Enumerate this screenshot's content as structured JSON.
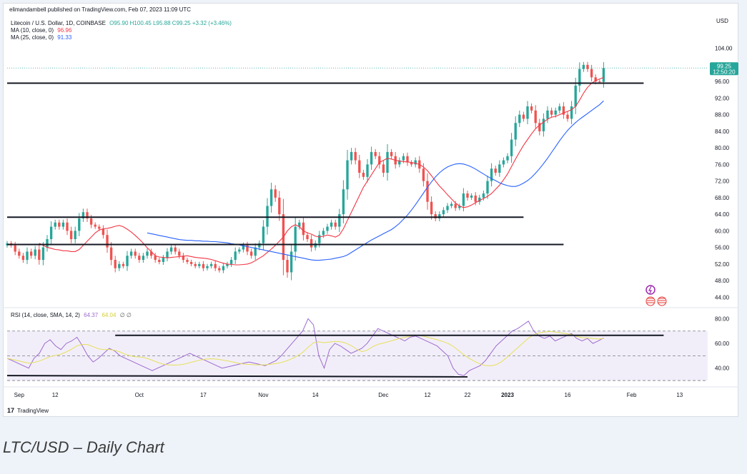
{
  "header": {
    "published": "elimandambell published on TradingView.com, Feb 07, 2023 11:09 UTC",
    "symbol_line": "Litecoin / U.S. Dollar, 1D, COINBASE",
    "ohlc": "O95.90 H100.45 L95.88 C99.25 +3.32 (+3.46%)",
    "ma10_label": "MA (10, close, 0)",
    "ma10_value": "96.96",
    "ma25_label": "MA (25, close, 0)",
    "ma25_value": "91.33",
    "rsi_label": "RSI (14, close, SMA, 14, 2)",
    "rsi_value": "64.37",
    "rsi_sma_value": "64.04",
    "rsi_extra": "∅ ∅",
    "currency": "USD",
    "price_tag": "99.25",
    "countdown": "12:50:20",
    "branding": "TradingView"
  },
  "caption": "LTC/USD – Daily Chart",
  "colors": {
    "up": "#26a69a",
    "down": "#ef5350",
    "ma10": "#f23645",
    "ma25": "#2962ff",
    "rsi": "#9c6bd0",
    "rsi_sma": "#e6e05a",
    "trend": "#131722"
  },
  "chart_data": {
    "type": "candlestick",
    "title": "Litecoin / U.S. Dollar, 1D, COINBASE",
    "price_axis": {
      "ylim": [
        42,
        106
      ],
      "ticks": [
        "104.00",
        "100.00",
        "96.00",
        "92.00",
        "88.00",
        "84.00",
        "80.00",
        "76.00",
        "72.00",
        "68.00",
        "64.00",
        "60.00",
        "56.00",
        "52.00",
        "48.00",
        "44.00"
      ]
    },
    "rsi_axis": {
      "ylim": [
        26,
        86
      ],
      "ticks": [
        "80.00",
        "60.00",
        "40.00"
      ],
      "band": [
        30,
        70
      ]
    },
    "x_ticks": [
      {
        "label": "Sep",
        "day": 3
      },
      {
        "label": "12",
        "day": 12
      },
      {
        "label": "Oct",
        "day": 33
      },
      {
        "label": "17",
        "day": 49
      },
      {
        "label": "Nov",
        "day": 64
      },
      {
        "label": "14",
        "day": 77
      },
      {
        "label": "Dec",
        "day": 94
      },
      {
        "label": "12",
        "day": 105
      },
      {
        "label": "22",
        "day": 115
      },
      {
        "label": "2023",
        "day": 125
      },
      {
        "label": "16",
        "day": 140
      },
      {
        "label": "Feb",
        "day": 156
      },
      {
        "label": "13",
        "day": 168
      }
    ],
    "close": [
      57,
      56.5,
      55,
      54,
      53,
      55,
      54,
      55.5,
      53,
      56,
      58,
      61,
      62,
      61,
      62,
      60,
      58,
      60,
      63,
      64.5,
      63,
      61.5,
      61,
      60.5,
      59,
      56,
      53,
      51,
      52,
      51.5,
      54,
      55,
      54,
      53,
      54,
      55,
      54,
      53,
      52.5,
      53.5,
      55,
      56,
      55,
      54,
      53,
      52.5,
      52,
      51.5,
      52,
      51,
      51.5,
      52,
      51,
      50.5,
      51.5,
      52,
      53,
      55,
      55.5,
      56.5,
      55,
      54,
      56,
      57,
      61,
      66,
      70,
      68,
      64,
      53,
      50,
      55,
      61,
      62,
      59,
      58,
      56,
      57,
      59,
      60,
      61,
      62,
      61,
      64,
      70,
      77,
      79,
      77,
      74,
      73,
      76,
      79,
      78,
      76,
      74,
      79,
      78,
      76,
      77,
      78,
      76.5,
      76,
      77,
      75,
      72,
      67,
      64,
      63,
      64,
      65,
      66,
      66.5,
      65.5,
      66,
      69,
      68,
      68.5,
      67,
      68,
      69,
      72,
      75,
      74,
      76,
      77,
      78,
      82,
      86,
      88,
      87,
      90,
      89,
      86,
      84,
      87,
      89,
      88,
      89,
      90,
      88,
      87,
      90,
      95,
      99,
      100,
      99,
      97,
      96,
      95.9,
      99.25
    ],
    "ma10": [
      57,
      56.5,
      56,
      55.8,
      55.5,
      55.4,
      55.2,
      55.2,
      55,
      55,
      55.5,
      56.5,
      57.5,
      58.5,
      59.5,
      60.2,
      60.5,
      60.6,
      60.8,
      61.1,
      61.3,
      61,
      60.4,
      59.7,
      58.9,
      58,
      57,
      55.9,
      55,
      54,
      53.7,
      53.6,
      53.5,
      53.6,
      53.7,
      53.8,
      53.9,
      54,
      53.8,
      53.6,
      53.5,
      53.4,
      53.3,
      53.1,
      52.8,
      52.5,
      52.2,
      52,
      51.9,
      51.8,
      51.8,
      51.9,
      52,
      52.3,
      52.8,
      53.4,
      54,
      54.8,
      55.6,
      56.5,
      57.5,
      58.5,
      60,
      61,
      61.5,
      61,
      60,
      59.5,
      59.2,
      58.7,
      58.5,
      58.7,
      59,
      58.8,
      58.5,
      59,
      60.5,
      62.5,
      64.5,
      66.5,
      68.5,
      70.5,
      72,
      73.5,
      75,
      76.5,
      77,
      77.5,
      77.3,
      77,
      76.8,
      76.7,
      76.6,
      76.5,
      76.3,
      76,
      75.4,
      74.5,
      73.3,
      72,
      70.8,
      69.8,
      68.7,
      67.7,
      66.7,
      66,
      65.6,
      65.8,
      66.2,
      66.8,
      67.3,
      67.8,
      68.3,
      69,
      70,
      71,
      72.3,
      73.7,
      75.5,
      77.3,
      79,
      80.6,
      82,
      83.4,
      84.6,
      85.5,
      86.2,
      86.9,
      87.4,
      87.6,
      88,
      88.4,
      88.8,
      89.2,
      90,
      91.5,
      93.2,
      94.6,
      95.6,
      96.2,
      96.6,
      96.96
    ],
    "ma25": [
      59.5,
      59.3,
      59.1,
      58.9,
      58.7,
      58.5,
      58.3,
      58.1,
      57.9,
      57.8,
      57.7,
      57.7,
      57.6,
      57.6,
      57.5,
      57.5,
      57.4,
      57.4,
      57.3,
      57.2,
      57.1,
      56.9,
      56.8,
      56.6,
      56.4,
      56.2,
      56,
      55.8,
      55.6,
      55.4,
      55.2,
      55,
      54.8,
      54.6,
      54.4,
      54.2,
      54,
      53.8,
      53.6,
      53.4,
      53.2,
      53,
      52.9,
      52.9,
      53,
      53.1,
      53.2,
      53.4,
      53.6,
      53.8,
      54.2,
      54.8,
      55.4,
      56,
      56.6,
      57.2,
      57.8,
      58.3,
      58.8,
      59.3,
      59.8,
      60.3,
      61,
      61.8,
      62.8,
      63.8,
      65,
      66.3,
      67.7,
      69.1,
      70.5,
      71.8,
      73,
      74,
      74.8,
      75.4,
      75.8,
      76.1,
      76.2,
      76.1,
      75.8,
      75.4,
      74.9,
      74.3,
      73.7,
      73.1,
      72.6,
      72.1,
      71.6,
      71.2,
      70.9,
      70.7,
      70.7,
      71,
      71.5,
      72.1,
      72.9,
      73.9,
      75,
      76.2,
      77.5,
      78.9,
      80.3,
      81.7,
      83,
      84.2,
      85.2,
      86.1,
      86.9,
      87.6,
      88.3,
      89,
      89.7,
      90.4,
      91.33
    ],
    "rsi_sample": [
      48,
      46,
      44,
      42,
      40,
      48,
      52,
      60,
      63,
      58,
      55,
      60,
      62,
      65,
      58,
      50,
      45,
      48,
      52,
      56,
      54,
      50,
      48,
      46,
      44,
      42,
      40,
      38,
      40,
      42,
      44,
      46,
      48,
      50,
      52,
      50,
      48,
      46,
      44,
      42,
      40,
      41,
      42,
      43,
      44,
      45,
      44,
      43,
      42,
      44,
      46,
      50,
      55,
      60,
      65,
      70,
      80,
      75,
      50,
      40,
      55,
      60,
      58,
      55,
      52,
      54,
      56,
      60,
      66,
      72,
      70,
      68,
      66,
      64,
      62,
      65,
      66,
      64,
      62,
      60,
      58,
      54,
      50,
      40,
      35,
      34,
      38,
      40,
      42,
      46,
      52,
      58,
      62,
      66,
      70,
      72,
      75,
      78,
      70,
      66,
      64,
      66,
      62,
      64,
      66,
      68,
      64,
      62,
      64,
      60,
      62,
      64.37
    ]
  }
}
